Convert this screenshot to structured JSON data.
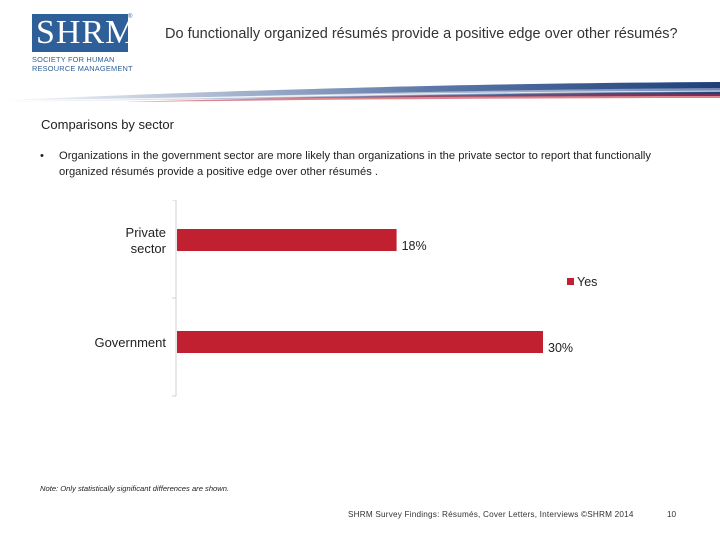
{
  "colors": {
    "accent": "#c0202f",
    "brand": "#2f5f98"
  },
  "logo": {
    "letters": "SHRM",
    "mark": "®",
    "line1": "SOCIETY FOR HUMAN",
    "line2": "RESOURCE MANAGEMENT"
  },
  "header": {
    "title": "Do functionally organized résumés provide a positive edge over other résumés?"
  },
  "section": {
    "heading": "Comparisons by sector",
    "bullet": "Organizations in the government sector are more likely than organizations in the private sector to report that functionally organized résumés provide a positive edge over other résumés ."
  },
  "chart_data": {
    "type": "bar",
    "orientation": "horizontal",
    "categories": [
      "Private sector",
      "Government"
    ],
    "series": [
      {
        "name": "Yes",
        "values": [
          18,
          30
        ],
        "color": "#c0202f"
      }
    ],
    "data_labels": [
      "18%",
      "30%"
    ],
    "legend_position": "right",
    "grid": false
  },
  "footer": {
    "note": "Note: Only statistically significant differences are shown.",
    "source": "SHRM Survey Findings: Résumés, Cover Letters, Interviews ©SHRM 2014",
    "page": "10"
  }
}
